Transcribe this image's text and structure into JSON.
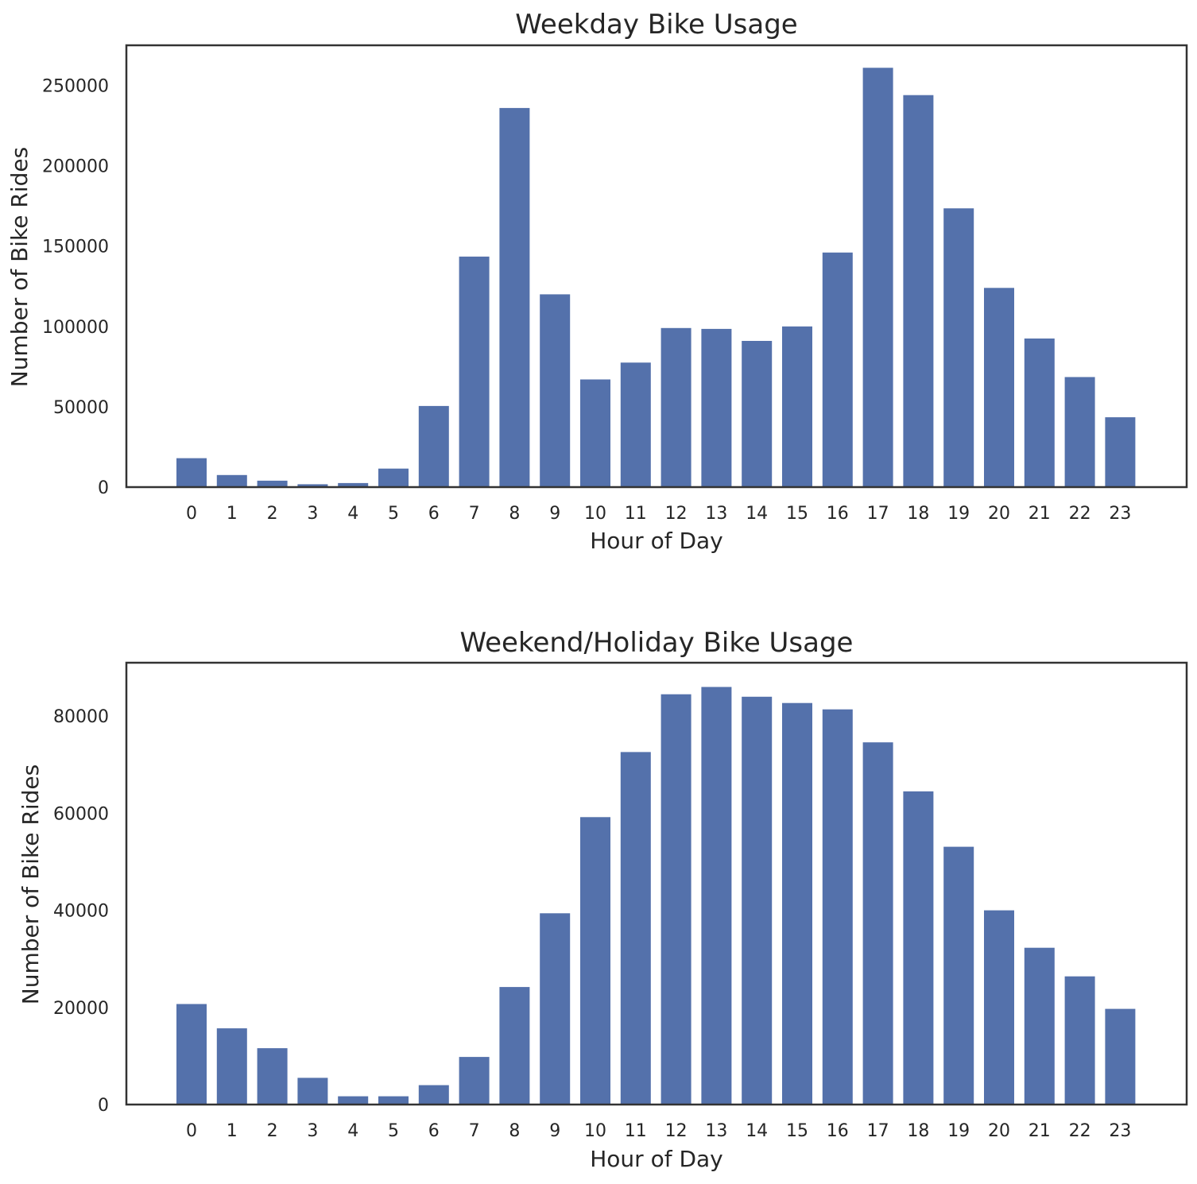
{
  "bar_color": "#5471AB",
  "chart_data": [
    {
      "type": "bar",
      "title": "Weekday Bike Usage",
      "xlabel": "Hour of Day",
      "ylabel": "Number of Bike Rides",
      "categories": [
        "0",
        "1",
        "2",
        "3",
        "4",
        "5",
        "6",
        "7",
        "8",
        "9",
        "10",
        "11",
        "12",
        "13",
        "14",
        "15",
        "16",
        "17",
        "18",
        "19",
        "20",
        "21",
        "22",
        "23"
      ],
      "values": [
        18000,
        7500,
        4000,
        1800,
        2500,
        11500,
        50500,
        143500,
        236000,
        120000,
        67000,
        77500,
        99000,
        98500,
        91000,
        100000,
        146000,
        261000,
        244000,
        173500,
        124000,
        92500,
        68500,
        43500
      ],
      "ylim": [
        0,
        275000
      ],
      "yticks": [
        0,
        50000,
        100000,
        150000,
        200000,
        250000
      ],
      "grid": false
    },
    {
      "type": "bar",
      "title": "Weekend/Holiday Bike Usage",
      "xlabel": "Hour of Day",
      "ylabel": "Number of Bike Rides",
      "categories": [
        "0",
        "1",
        "2",
        "3",
        "4",
        "5",
        "6",
        "7",
        "8",
        "9",
        "10",
        "11",
        "12",
        "13",
        "14",
        "15",
        "16",
        "17",
        "18",
        "19",
        "20",
        "21",
        "22",
        "23"
      ],
      "values": [
        20700,
        15700,
        11600,
        5500,
        1700,
        1700,
        4000,
        9800,
        24200,
        39400,
        59200,
        72600,
        84500,
        86000,
        84000,
        82700,
        81400,
        74600,
        64500,
        53100,
        40000,
        32300,
        26400,
        19700
      ],
      "ylim": [
        0,
        91000
      ],
      "yticks": [
        0,
        20000,
        40000,
        60000,
        80000
      ],
      "grid": false
    }
  ]
}
